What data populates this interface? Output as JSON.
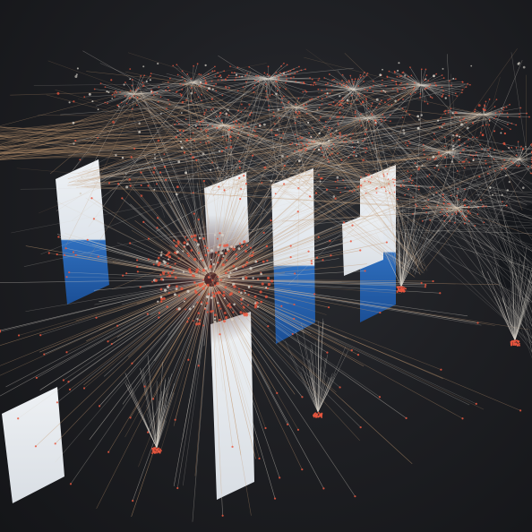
{
  "scene": {
    "subject": "3d-network-graph-with-floating-document-panels",
    "colors": {
      "background": "#1c1d21",
      "edge_warm": "#c49a72",
      "edge_pale": "#d8d2c8",
      "node_glow": "#e8573f",
      "panel_face": "#e9ecef",
      "panel_accent": "#1e63b6"
    }
  }
}
